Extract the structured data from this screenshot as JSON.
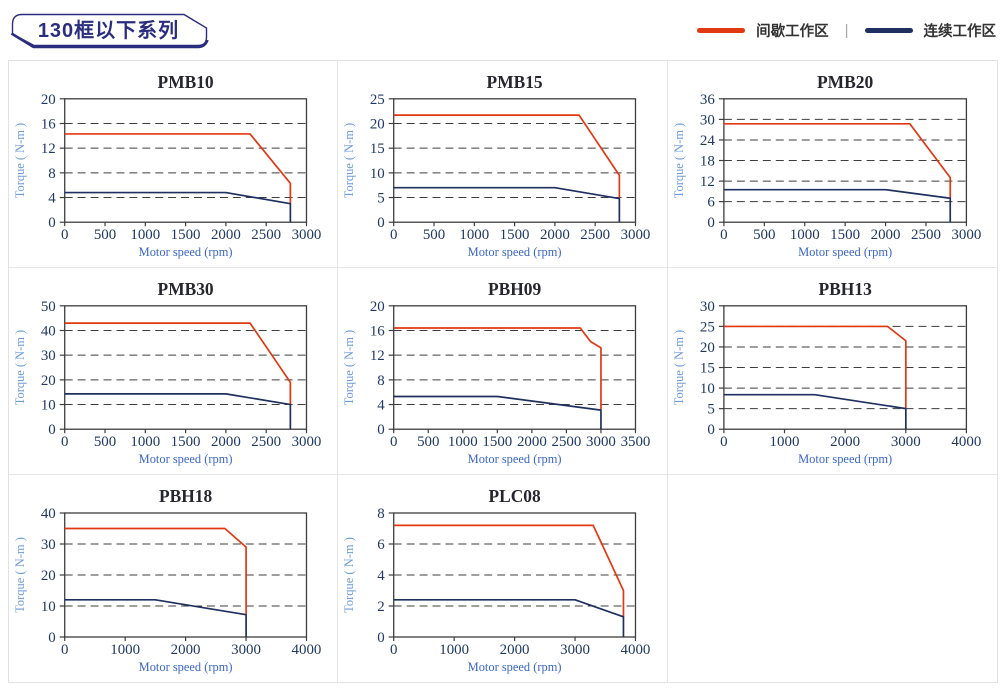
{
  "page": {
    "header_badge": "130框以下系列",
    "legend": [
      {
        "name": "intermittent-zone",
        "label": "间歇工作区",
        "color": "#e23812"
      },
      {
        "name": "continuous-zone",
        "label": "连续工作区",
        "color": "#1f3060"
      }
    ],
    "legend_separator": "|",
    "badge_color": "#2b2e7f"
  },
  "chart_data": [
    {
      "type": "line",
      "title": "PMB10",
      "xlabel": "Motor speed (rpm)",
      "ylabel": "Torque ( N-m )",
      "xlim": [
        0,
        3000
      ],
      "xticks": [
        0,
        500,
        1000,
        1500,
        2000,
        2500,
        3000
      ],
      "ylim": [
        0,
        20
      ],
      "yticks": [
        0,
        4,
        8,
        12,
        16,
        20
      ],
      "grid": "horizontal-dashed",
      "legend_position": "none",
      "series": [
        {
          "name": "间歇工作区",
          "color": "#e23812",
          "points": [
            [
              0,
              14.3
            ],
            [
              2300,
              14.3
            ],
            [
              2800,
              6.3
            ],
            [
              2800,
              3.0
            ]
          ]
        },
        {
          "name": "连续工作区",
          "color": "#1f3060",
          "points": [
            [
              0,
              4.8
            ],
            [
              2000,
              4.8
            ],
            [
              2800,
              3.0
            ],
            [
              2800,
              0
            ]
          ]
        }
      ]
    },
    {
      "type": "line",
      "title": "PMB15",
      "xlabel": "Motor speed (rpm)",
      "ylabel": "Torque ( N-m )",
      "xlim": [
        0,
        3000
      ],
      "xticks": [
        0,
        500,
        1000,
        1500,
        2000,
        2500,
        3000
      ],
      "ylim": [
        0,
        25
      ],
      "yticks": [
        0,
        5,
        10,
        15,
        20,
        25
      ],
      "grid": "horizontal-dashed",
      "legend_position": "none",
      "series": [
        {
          "name": "间歇工作区",
          "color": "#e23812",
          "points": [
            [
              0,
              21.7
            ],
            [
              2300,
              21.7
            ],
            [
              2800,
              9.5
            ],
            [
              2800,
              4.8
            ]
          ]
        },
        {
          "name": "连续工作区",
          "color": "#1f3060",
          "points": [
            [
              0,
              7.0
            ],
            [
              2000,
              7.0
            ],
            [
              2800,
              4.8
            ],
            [
              2800,
              0
            ]
          ]
        }
      ]
    },
    {
      "type": "line",
      "title": "PMB20",
      "xlabel": "Motor speed (rpm)",
      "ylabel": "Torque ( N-m )",
      "xlim": [
        0,
        3000
      ],
      "xticks": [
        0,
        500,
        1000,
        1500,
        2000,
        2500,
        3000
      ],
      "ylim": [
        0,
        36
      ],
      "yticks": [
        0,
        6,
        12,
        18,
        24,
        30,
        36
      ],
      "grid": "horizontal-dashed",
      "legend_position": "none",
      "series": [
        {
          "name": "间歇工作区",
          "color": "#e23812",
          "points": [
            [
              0,
              28.7
            ],
            [
              2300,
              28.7
            ],
            [
              2800,
              13.0
            ],
            [
              2800,
              7.0
            ]
          ]
        },
        {
          "name": "连续工作区",
          "color": "#1f3060",
          "points": [
            [
              0,
              9.5
            ],
            [
              2000,
              9.5
            ],
            [
              2800,
              7.0
            ],
            [
              2800,
              0
            ]
          ]
        }
      ]
    },
    {
      "type": "line",
      "title": "PMB30",
      "xlabel": "Motor speed (rpm)",
      "ylabel": "Torque ( N-m )",
      "xlim": [
        0,
        3000
      ],
      "xticks": [
        0,
        500,
        1000,
        1500,
        2000,
        2500,
        3000
      ],
      "ylim": [
        0,
        50
      ],
      "yticks": [
        0,
        10,
        20,
        30,
        40,
        50
      ],
      "grid": "horizontal-dashed",
      "legend_position": "none",
      "series": [
        {
          "name": "间歇工作区",
          "color": "#e23812",
          "points": [
            [
              0,
              43
            ],
            [
              2300,
              43
            ],
            [
              2800,
              19
            ],
            [
              2800,
              10
            ]
          ]
        },
        {
          "name": "连续工作区",
          "color": "#1f3060",
          "points": [
            [
              0,
              14.3
            ],
            [
              2000,
              14.3
            ],
            [
              2800,
              10
            ],
            [
              2800,
              0
            ]
          ]
        }
      ]
    },
    {
      "type": "line",
      "title": "PBH09",
      "xlabel": "Motor speed (rpm)",
      "ylabel": "Torque ( N-m )",
      "xlim": [
        0,
        3500
      ],
      "xticks": [
        0,
        500,
        1000,
        1500,
        2000,
        2500,
        3000,
        3500
      ],
      "ylim": [
        0,
        20
      ],
      "yticks": [
        0,
        4,
        8,
        12,
        16,
        20
      ],
      "grid": "horizontal-dashed",
      "legend_position": "none",
      "series": [
        {
          "name": "间歇工作区",
          "color": "#e23812",
          "points": [
            [
              0,
              16.4
            ],
            [
              2700,
              16.4
            ],
            [
              2850,
              14.2
            ],
            [
              3000,
              13.2
            ],
            [
              3000,
              3.1
            ]
          ]
        },
        {
          "name": "连续工作区",
          "color": "#1f3060",
          "points": [
            [
              0,
              5.3
            ],
            [
              1500,
              5.3
            ],
            [
              3000,
              3.1
            ],
            [
              3000,
              0
            ]
          ]
        }
      ]
    },
    {
      "type": "line",
      "title": "PBH13",
      "xlabel": "Motor speed (rpm)",
      "ylabel": "Torque ( N-m )",
      "xlim": [
        0,
        4000
      ],
      "xticks": [
        0,
        1000,
        2000,
        3000,
        4000
      ],
      "ylim": [
        0,
        30
      ],
      "yticks": [
        0,
        5,
        10,
        15,
        20,
        25,
        30
      ],
      "grid": "horizontal-dashed",
      "legend_position": "none",
      "series": [
        {
          "name": "间歇工作区",
          "color": "#e23812",
          "points": [
            [
              0,
              25
            ],
            [
              2700,
              25
            ],
            [
              3000,
              21.5
            ],
            [
              3000,
              5
            ]
          ]
        },
        {
          "name": "连续工作区",
          "color": "#1f3060",
          "points": [
            [
              0,
              8.4
            ],
            [
              1500,
              8.4
            ],
            [
              3000,
              5
            ],
            [
              3000,
              0
            ]
          ]
        }
      ]
    },
    {
      "type": "line",
      "title": "PBH18",
      "xlabel": "Motor speed (rpm)",
      "ylabel": "Torque ( N-m )",
      "xlim": [
        0,
        4000
      ],
      "xticks": [
        0,
        1000,
        2000,
        3000,
        4000
      ],
      "ylim": [
        0,
        40
      ],
      "yticks": [
        0,
        10,
        20,
        30,
        40
      ],
      "grid": "horizontal-dashed",
      "legend_position": "none",
      "series": [
        {
          "name": "间歇工作区",
          "color": "#e23812",
          "points": [
            [
              0,
              35
            ],
            [
              2650,
              35
            ],
            [
              3000,
              29
            ],
            [
              3000,
              7.2
            ]
          ]
        },
        {
          "name": "连续工作区",
          "color": "#1f3060",
          "points": [
            [
              0,
              12
            ],
            [
              1500,
              12
            ],
            [
              3000,
              7.2
            ],
            [
              3000,
              0
            ]
          ]
        }
      ]
    },
    {
      "type": "line",
      "title": "PLC08",
      "xlabel": "Motor speed (rpm)",
      "ylabel": "Torque ( N-m )",
      "xlim": [
        0,
        4000
      ],
      "xticks": [
        0,
        1000,
        2000,
        3000,
        4000
      ],
      "ylim": [
        0,
        8
      ],
      "yticks": [
        0,
        2,
        4,
        6,
        8
      ],
      "grid": "horizontal-dashed",
      "legend_position": "none",
      "series": [
        {
          "name": "间歇工作区",
          "color": "#e23812",
          "points": [
            [
              0,
              7.2
            ],
            [
              3300,
              7.2
            ],
            [
              3800,
              3.0
            ],
            [
              3800,
              1.3
            ]
          ]
        },
        {
          "name": "连续工作区",
          "color": "#1f3060",
          "points": [
            [
              0,
              2.4
            ],
            [
              3000,
              2.4
            ],
            [
              3800,
              1.3
            ],
            [
              3800,
              0
            ]
          ]
        }
      ]
    }
  ]
}
